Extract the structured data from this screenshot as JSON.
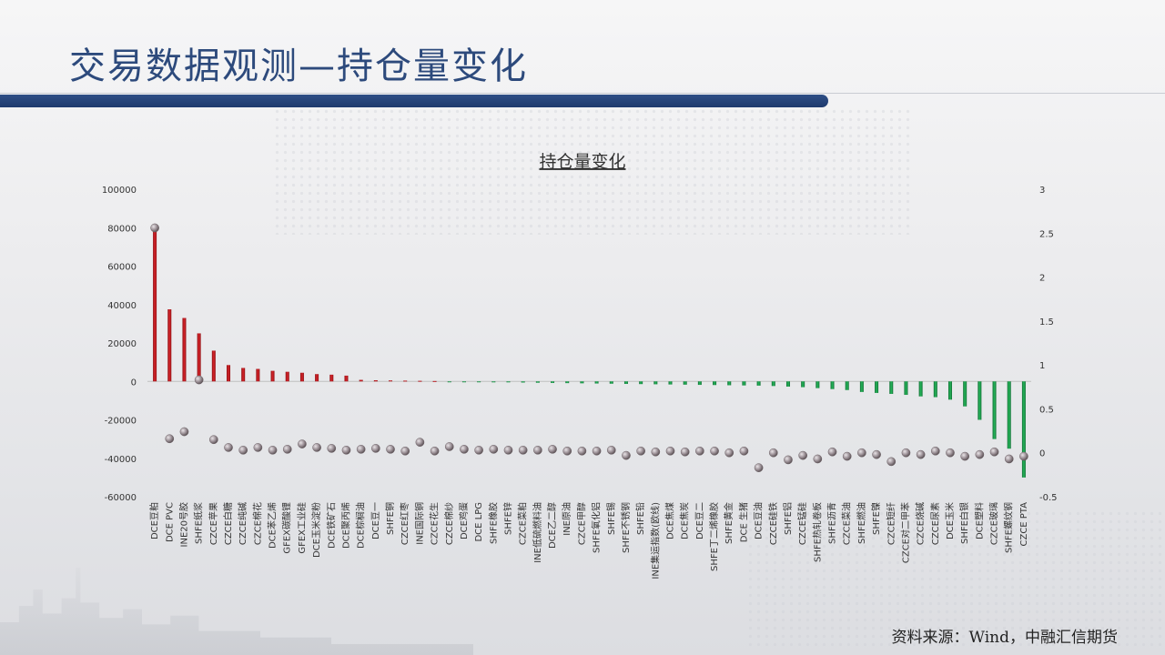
{
  "slide": {
    "title": "交易数据观测—持仓量变化",
    "source": "资料来源：Wind，中融汇信期货"
  },
  "colors": {
    "positive": "#c0151b",
    "negative": "#1c9a4a",
    "title_blue": "#2d4a7c",
    "marker": "#9a8f95"
  },
  "chart_data": {
    "type": "bar",
    "title": "持仓量变化",
    "categories": [
      "DCE豆粕",
      "DCE PVC",
      "INE20号胶",
      "SHFE纸浆",
      "CZCE苹果",
      "CZCE白糖",
      "CZCE纯碱",
      "CZCE棉花",
      "DCE苯乙烯",
      "GFEX碳酸锂",
      "GFEX工业硅",
      "DCE玉米淀粉",
      "DCE铁矿石",
      "DCE聚丙烯",
      "DCE棕榈油",
      "DCE豆一",
      "SHFE铜",
      "CZCE红枣",
      "INE国际铜",
      "CZCE花生",
      "CZCE棉纱",
      "DCE鸡蛋",
      "DCE LPG",
      "SHFE橡胶",
      "SHFE锌",
      "CZCE菜粕",
      "INE低硫燃料油",
      "DCE乙二醇",
      "INE原油",
      "CZCE甲醇",
      "SHFE氧化铝",
      "SHFE锡",
      "SHFE不锈钢",
      "SHFE铅",
      "INE集运指数(欧线)",
      "DCE焦煤",
      "DCE焦炭",
      "DCE豆二",
      "SHFE丁二烯橡胶",
      "SHFE黄金",
      "DCE 生猪",
      "DCE豆油",
      "CZCE硅铁",
      "SHFE铝",
      "CZCE锰硅",
      "SHFE热轧卷板",
      "SHFE沥青",
      "CZCE菜油",
      "SHFE燃油",
      "SHFE镍",
      "CZCE短纤",
      "CZCE对二甲苯",
      "CZCE烧碱",
      "CZCE尿素",
      "DCE玉米",
      "SHFE白银",
      "DCE塑料",
      "CZCE玻璃",
      "SHFE螺纹钢",
      "CZCE PTA"
    ],
    "series": [
      {
        "axis": "left",
        "render": "bar",
        "values": [
          81000,
          37500,
          33000,
          25000,
          16000,
          8500,
          7000,
          6500,
          5500,
          5000,
          4500,
          3800,
          3500,
          3000,
          800,
          600,
          500,
          400,
          300,
          200,
          -200,
          -300,
          -400,
          -500,
          -500,
          -600,
          -700,
          -800,
          -900,
          -1000,
          -1100,
          -1200,
          -1300,
          -1400,
          -1500,
          -1600,
          -1700,
          -1800,
          -1900,
          -2000,
          -2100,
          -2200,
          -2400,
          -2700,
          -3000,
          -3500,
          -4000,
          -4500,
          -5500,
          -6000,
          -6500,
          -7000,
          -7800,
          -8200,
          -9500,
          -13000,
          -20000,
          -30000,
          -35000,
          -50000
        ]
      },
      {
        "axis": "right",
        "render": "marker",
        "values": [
          2.56,
          0.16,
          0.24,
          0.83,
          0.15,
          0.06,
          0.03,
          0.06,
          0.03,
          0.04,
          0.1,
          0.06,
          0.05,
          0.03,
          0.04,
          0.05,
          0.04,
          0.02,
          0.12,
          0.02,
          0.07,
          0.04,
          0.03,
          0.04,
          0.03,
          0.03,
          0.03,
          0.04,
          0.02,
          0.02,
          0.02,
          0.03,
          -0.03,
          0.02,
          0.01,
          0.02,
          0.01,
          0.02,
          0.02,
          0.0,
          0.02,
          -0.17,
          0.0,
          -0.08,
          -0.03,
          -0.07,
          0.01,
          -0.04,
          0.0,
          -0.02,
          -0.1,
          0.0,
          -0.02,
          0.02,
          0.0,
          -0.04,
          -0.02,
          0.01,
          -0.07,
          -0.04
        ]
      }
    ],
    "y_left": {
      "min": -60000,
      "max": 100000,
      "ticks": [
        100000,
        80000,
        60000,
        40000,
        20000,
        0,
        -20000,
        -40000,
        -60000
      ]
    },
    "y_right": {
      "min": -0.5,
      "max": 3,
      "ticks": [
        "3",
        "2.5",
        "2",
        "1.5",
        "1",
        "0.5",
        "0",
        "-0.5"
      ]
    },
    "grid": false,
    "legend": "none"
  }
}
